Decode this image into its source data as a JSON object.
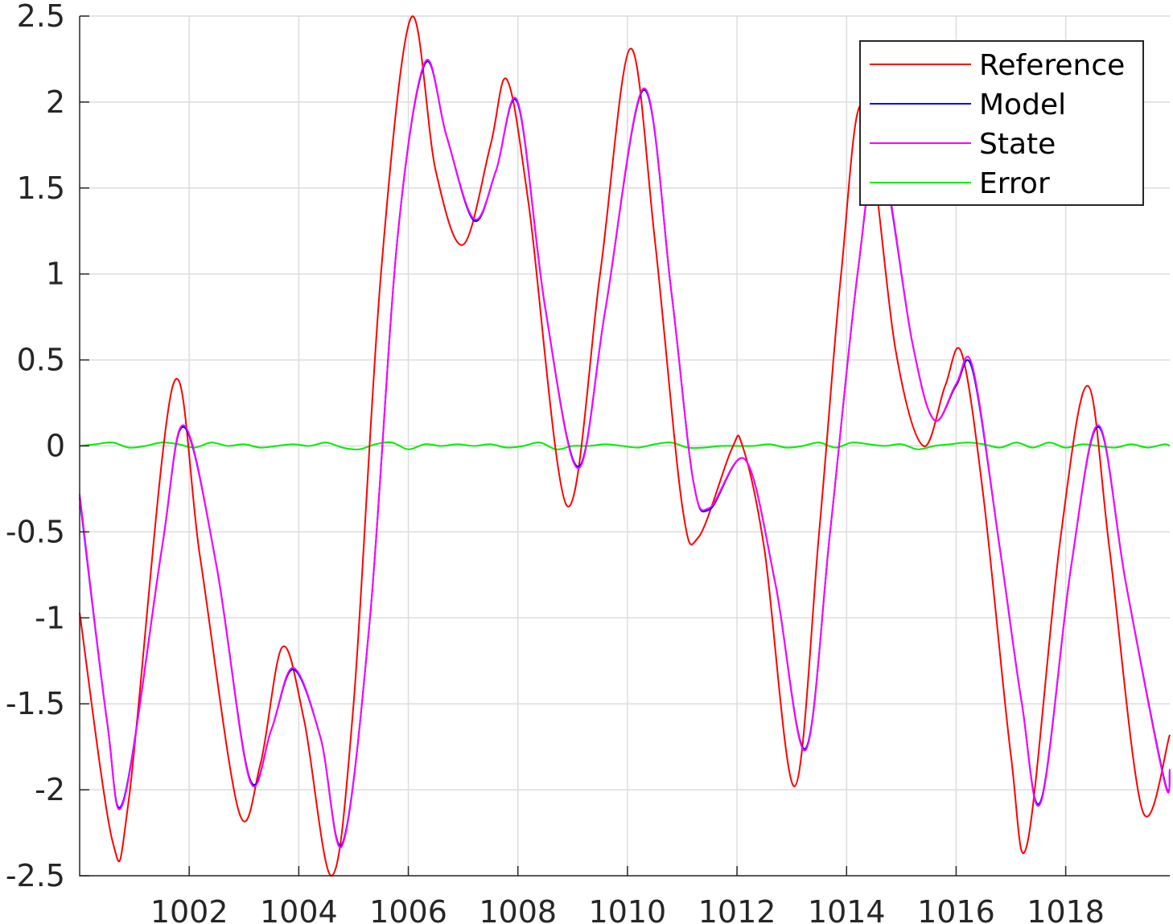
{
  "chart_data": {
    "type": "line",
    "title": "",
    "xlabel": "",
    "ylabel": "",
    "xlim": [
      1000,
      1019.9
    ],
    "ylim": [
      -2.5,
      2.5
    ],
    "grid": true,
    "legend_position": "top-right",
    "x_ticks": [
      1002,
      1004,
      1006,
      1008,
      1010,
      1012,
      1014,
      1016,
      1018
    ],
    "x_tick_labels": [
      "1002",
      "1004",
      "1006",
      "1008",
      "1010",
      "1012",
      "1014",
      "1016",
      "1018"
    ],
    "y_ticks": [
      -2.5,
      -2,
      -1.5,
      -1,
      -0.5,
      0,
      0.5,
      1,
      1.5,
      2,
      2.5
    ],
    "y_tick_labels": [
      "-2.5",
      "-2",
      "-1.5",
      "-1",
      "-0.5",
      "0",
      "0.5",
      "1",
      "1.5",
      "2",
      "2.5"
    ],
    "series": [
      {
        "name": "Reference",
        "color": "#ff0000",
        "points": [
          [
            1000,
            -0.97
          ],
          [
            1000.6,
            -2.3
          ],
          [
            1000.9,
            -2.05
          ],
          [
            1001.7,
            0.35
          ],
          [
            1002.2,
            -0.65
          ],
          [
            1002.9,
            -2.12
          ],
          [
            1003.3,
            -1.85
          ],
          [
            1003.7,
            -1.17
          ],
          [
            1004.1,
            -1.6
          ],
          [
            1004.6,
            -2.5
          ],
          [
            1005.0,
            -1.5
          ],
          [
            1005.5,
            1.0
          ],
          [
            1006.05,
            2.49
          ],
          [
            1006.5,
            1.6
          ],
          [
            1007.0,
            1.17
          ],
          [
            1007.5,
            1.75
          ],
          [
            1007.8,
            2.13
          ],
          [
            1008.2,
            1.4
          ],
          [
            1008.9,
            -0.35
          ],
          [
            1009.5,
            1.0
          ],
          [
            1010.05,
            2.31
          ],
          [
            1010.5,
            1.2
          ],
          [
            1011.0,
            -0.35
          ],
          [
            1011.3,
            -0.53
          ],
          [
            1011.9,
            -0.02
          ],
          [
            1012.1,
            0.0
          ],
          [
            1012.5,
            -0.6
          ],
          [
            1013.05,
            -1.98
          ],
          [
            1013.5,
            -0.5
          ],
          [
            1013.9,
            1.0
          ],
          [
            1014.3,
            1.98
          ],
          [
            1014.9,
            0.55
          ],
          [
            1015.4,
            0.0
          ],
          [
            1015.8,
            0.35
          ],
          [
            1016.1,
            0.54
          ],
          [
            1016.5,
            -0.3
          ],
          [
            1017.0,
            -1.8
          ],
          [
            1017.3,
            -2.31
          ],
          [
            1017.9,
            -0.55
          ],
          [
            1018.4,
            0.35
          ],
          [
            1018.8,
            -0.6
          ],
          [
            1019.4,
            -2.12
          ],
          [
            1019.9,
            -1.68
          ]
        ]
      },
      {
        "name": "Model",
        "color": "#0000ff",
        "points": [
          [
            1000,
            -0.3
          ],
          [
            1000.5,
            -1.6
          ],
          [
            1000.8,
            -2.06
          ],
          [
            1001.5,
            -0.6
          ],
          [
            1001.9,
            0.11
          ],
          [
            1002.5,
            -0.7
          ],
          [
            1003.1,
            -1.93
          ],
          [
            1003.5,
            -1.65
          ],
          [
            1003.9,
            -1.3
          ],
          [
            1004.4,
            -1.7
          ],
          [
            1004.8,
            -2.31
          ],
          [
            1005.3,
            -1.0
          ],
          [
            1005.8,
            1.2
          ],
          [
            1006.3,
            2.22
          ],
          [
            1006.7,
            1.8
          ],
          [
            1007.2,
            1.31
          ],
          [
            1007.6,
            1.6
          ],
          [
            1008.0,
            1.99
          ],
          [
            1008.5,
            0.8
          ],
          [
            1009.1,
            -0.12
          ],
          [
            1009.6,
            0.8
          ],
          [
            1010.3,
            2.07
          ],
          [
            1010.8,
            0.9
          ],
          [
            1011.2,
            -0.2
          ],
          [
            1011.5,
            -0.37
          ],
          [
            1012.15,
            -0.08
          ],
          [
            1012.7,
            -0.8
          ],
          [
            1013.25,
            -1.76
          ],
          [
            1013.7,
            -0.5
          ],
          [
            1014.2,
            1.0
          ],
          [
            1014.6,
            1.7
          ],
          [
            1015.2,
            0.6
          ],
          [
            1015.6,
            0.15
          ],
          [
            1016.0,
            0.35
          ],
          [
            1016.3,
            0.44
          ],
          [
            1016.8,
            -0.6
          ],
          [
            1017.2,
            -1.5
          ],
          [
            1017.55,
            -2.06
          ],
          [
            1018.1,
            -0.7
          ],
          [
            1018.6,
            0.11
          ],
          [
            1019.1,
            -0.8
          ],
          [
            1019.8,
            -1.94
          ],
          [
            1019.9,
            -1.89
          ]
        ]
      },
      {
        "name": "State",
        "color": "#ff00ff",
        "points": [
          [
            1000,
            -0.28
          ],
          [
            1000.5,
            -1.6
          ],
          [
            1000.8,
            -2.07
          ],
          [
            1001.5,
            -0.6
          ],
          [
            1001.9,
            0.12
          ],
          [
            1002.5,
            -0.7
          ],
          [
            1003.1,
            -1.94
          ],
          [
            1003.5,
            -1.65
          ],
          [
            1003.9,
            -1.29
          ],
          [
            1004.4,
            -1.7
          ],
          [
            1004.8,
            -2.32
          ],
          [
            1005.3,
            -1.0
          ],
          [
            1005.8,
            1.2
          ],
          [
            1006.3,
            2.23
          ],
          [
            1006.7,
            1.8
          ],
          [
            1007.2,
            1.32
          ],
          [
            1007.6,
            1.6
          ],
          [
            1008.0,
            2.0
          ],
          [
            1008.5,
            0.8
          ],
          [
            1009.1,
            -0.13
          ],
          [
            1009.6,
            0.8
          ],
          [
            1010.3,
            2.08
          ],
          [
            1010.8,
            0.9
          ],
          [
            1011.2,
            -0.2
          ],
          [
            1011.5,
            -0.36
          ],
          [
            1012.15,
            -0.08
          ],
          [
            1012.7,
            -0.8
          ],
          [
            1013.25,
            -1.77
          ],
          [
            1013.7,
            -0.5
          ],
          [
            1014.2,
            1.0
          ],
          [
            1014.6,
            1.72
          ],
          [
            1015.2,
            0.6
          ],
          [
            1015.6,
            0.15
          ],
          [
            1016.0,
            0.36
          ],
          [
            1016.3,
            0.46
          ],
          [
            1016.8,
            -0.6
          ],
          [
            1017.2,
            -1.5
          ],
          [
            1017.55,
            -2.07
          ],
          [
            1018.1,
            -0.7
          ],
          [
            1018.6,
            0.12
          ],
          [
            1019.1,
            -0.8
          ],
          [
            1019.8,
            -1.95
          ],
          [
            1019.9,
            -1.88
          ]
        ]
      },
      {
        "name": "Error",
        "color": "#00ee00",
        "points": [
          [
            1000,
            0.0
          ],
          [
            1000.3,
            0.01
          ],
          [
            1000.6,
            0.02
          ],
          [
            1000.9,
            -0.01
          ],
          [
            1001.2,
            0.0
          ],
          [
            1001.5,
            0.02
          ],
          [
            1001.8,
            0.01
          ],
          [
            1002.1,
            -0.01
          ],
          [
            1002.4,
            0.02
          ],
          [
            1002.7,
            0.0
          ],
          [
            1003.0,
            0.01
          ],
          [
            1003.3,
            -0.01
          ],
          [
            1003.6,
            0.0
          ],
          [
            1003.9,
            0.01
          ],
          [
            1004.2,
            0.0
          ],
          [
            1004.5,
            0.02
          ],
          [
            1004.8,
            -0.01
          ],
          [
            1005.1,
            -0.02
          ],
          [
            1005.4,
            0.01
          ],
          [
            1005.7,
            0.02
          ],
          [
            1006.0,
            -0.02
          ],
          [
            1006.3,
            0.01
          ],
          [
            1006.6,
            0.0
          ],
          [
            1006.9,
            0.01
          ],
          [
            1007.2,
            0.0
          ],
          [
            1007.5,
            0.01
          ],
          [
            1007.8,
            -0.01
          ],
          [
            1008.1,
            0.0
          ],
          [
            1008.4,
            0.02
          ],
          [
            1008.7,
            -0.02
          ],
          [
            1009.0,
            0.0
          ],
          [
            1009.3,
            0.0
          ],
          [
            1009.6,
            0.01
          ],
          [
            1009.9,
            0.0
          ],
          [
            1010.2,
            -0.01
          ],
          [
            1010.5,
            0.01
          ],
          [
            1010.8,
            0.02
          ],
          [
            1011.1,
            -0.01
          ],
          [
            1011.4,
            -0.01
          ],
          [
            1011.7,
            0.0
          ],
          [
            1012.0,
            0.0
          ],
          [
            1012.3,
            0.0
          ],
          [
            1012.6,
            0.01
          ],
          [
            1012.9,
            -0.01
          ],
          [
            1013.2,
            0.0
          ],
          [
            1013.5,
            0.02
          ],
          [
            1013.8,
            -0.01
          ],
          [
            1014.1,
            0.02
          ],
          [
            1014.4,
            0.01
          ],
          [
            1014.7,
            0.0
          ],
          [
            1015.0,
            0.01
          ],
          [
            1015.3,
            -0.02
          ],
          [
            1015.6,
            0.0
          ],
          [
            1015.9,
            0.01
          ],
          [
            1016.2,
            0.02
          ],
          [
            1016.5,
            0.01
          ],
          [
            1016.8,
            -0.01
          ],
          [
            1017.1,
            0.02
          ],
          [
            1017.4,
            -0.01
          ],
          [
            1017.7,
            0.02
          ],
          [
            1018.0,
            -0.01
          ],
          [
            1018.3,
            0.01
          ],
          [
            1018.6,
            0.0
          ],
          [
            1018.9,
            -0.01
          ],
          [
            1019.2,
            0.01
          ],
          [
            1019.5,
            -0.01
          ],
          [
            1019.8,
            0.01
          ],
          [
            1019.9,
            0.0
          ]
        ]
      }
    ]
  }
}
